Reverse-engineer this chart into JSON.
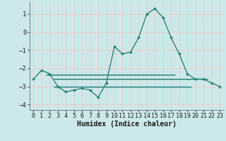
{
  "xlabel": "Humidex (Indice chaleur)",
  "bg_color": "#cce8ea",
  "grid_color": "#f0c8c8",
  "line_color": "#1a7a6e",
  "xlim": [
    -0.5,
    23.5
  ],
  "ylim": [
    -4.3,
    1.7
  ],
  "yticks": [
    -4,
    -3,
    -2,
    -1,
    0,
    1
  ],
  "xticks": [
    0,
    1,
    2,
    3,
    4,
    5,
    6,
    7,
    8,
    9,
    10,
    11,
    12,
    13,
    14,
    15,
    16,
    17,
    18,
    19,
    20,
    21,
    22,
    23
  ],
  "main_x": [
    0,
    1,
    2,
    3,
    4,
    5,
    6,
    7,
    8,
    9,
    10,
    11,
    12,
    13,
    14,
    15,
    16,
    17,
    18,
    19,
    20,
    21,
    22,
    23
  ],
  "main_y": [
    -2.6,
    -2.1,
    -2.3,
    -3.0,
    -3.3,
    -3.2,
    -3.1,
    -3.2,
    -3.6,
    -2.8,
    -0.8,
    -1.2,
    -1.1,
    -0.3,
    1.0,
    1.3,
    0.8,
    -0.3,
    -1.2,
    -2.3,
    -2.6,
    -2.6,
    -2.8,
    -3.0
  ],
  "hline1_y": -2.35,
  "hline1_xstart": 1.5,
  "hline1_xend": 17.5,
  "hline2_y": -2.6,
  "hline2_xstart": 2.5,
  "hline2_xend": 21.5,
  "hline3_y": -3.0,
  "hline3_xstart": 2.5,
  "hline3_xend": 19.5
}
